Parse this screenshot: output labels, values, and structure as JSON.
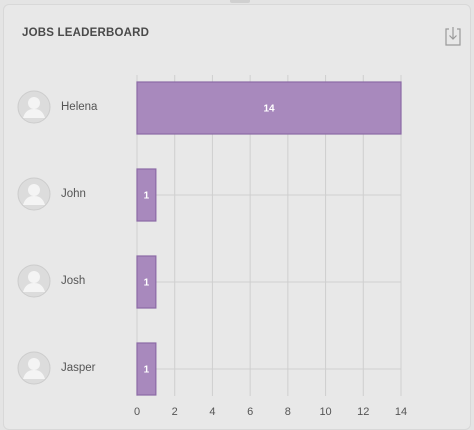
{
  "title": "JOBS LEADERBOARD",
  "icons": {
    "download": "download-icon",
    "avatar": "user-avatar-icon"
  },
  "colors": {
    "bar_fill": "#a889bd",
    "bar_stroke": "#8c6aa6",
    "grid": "#cfcfcf"
  },
  "users": [
    {
      "name": "Helena"
    },
    {
      "name": "John"
    },
    {
      "name": "Josh"
    },
    {
      "name": "Jasper"
    }
  ],
  "chart_data": {
    "type": "bar",
    "orientation": "horizontal",
    "categories": [
      "Helena",
      "John",
      "Josh",
      "Jasper"
    ],
    "values": [
      14,
      1,
      1,
      1
    ],
    "data_labels": [
      "14",
      "1",
      "1",
      "1"
    ],
    "xlim": [
      0,
      14
    ],
    "x_ticks": [
      "0",
      "2",
      "4",
      "6",
      "8",
      "10",
      "12",
      "14"
    ],
    "grid": true,
    "title": "JOBS LEADERBOARD",
    "xlabel": "",
    "ylabel": ""
  }
}
